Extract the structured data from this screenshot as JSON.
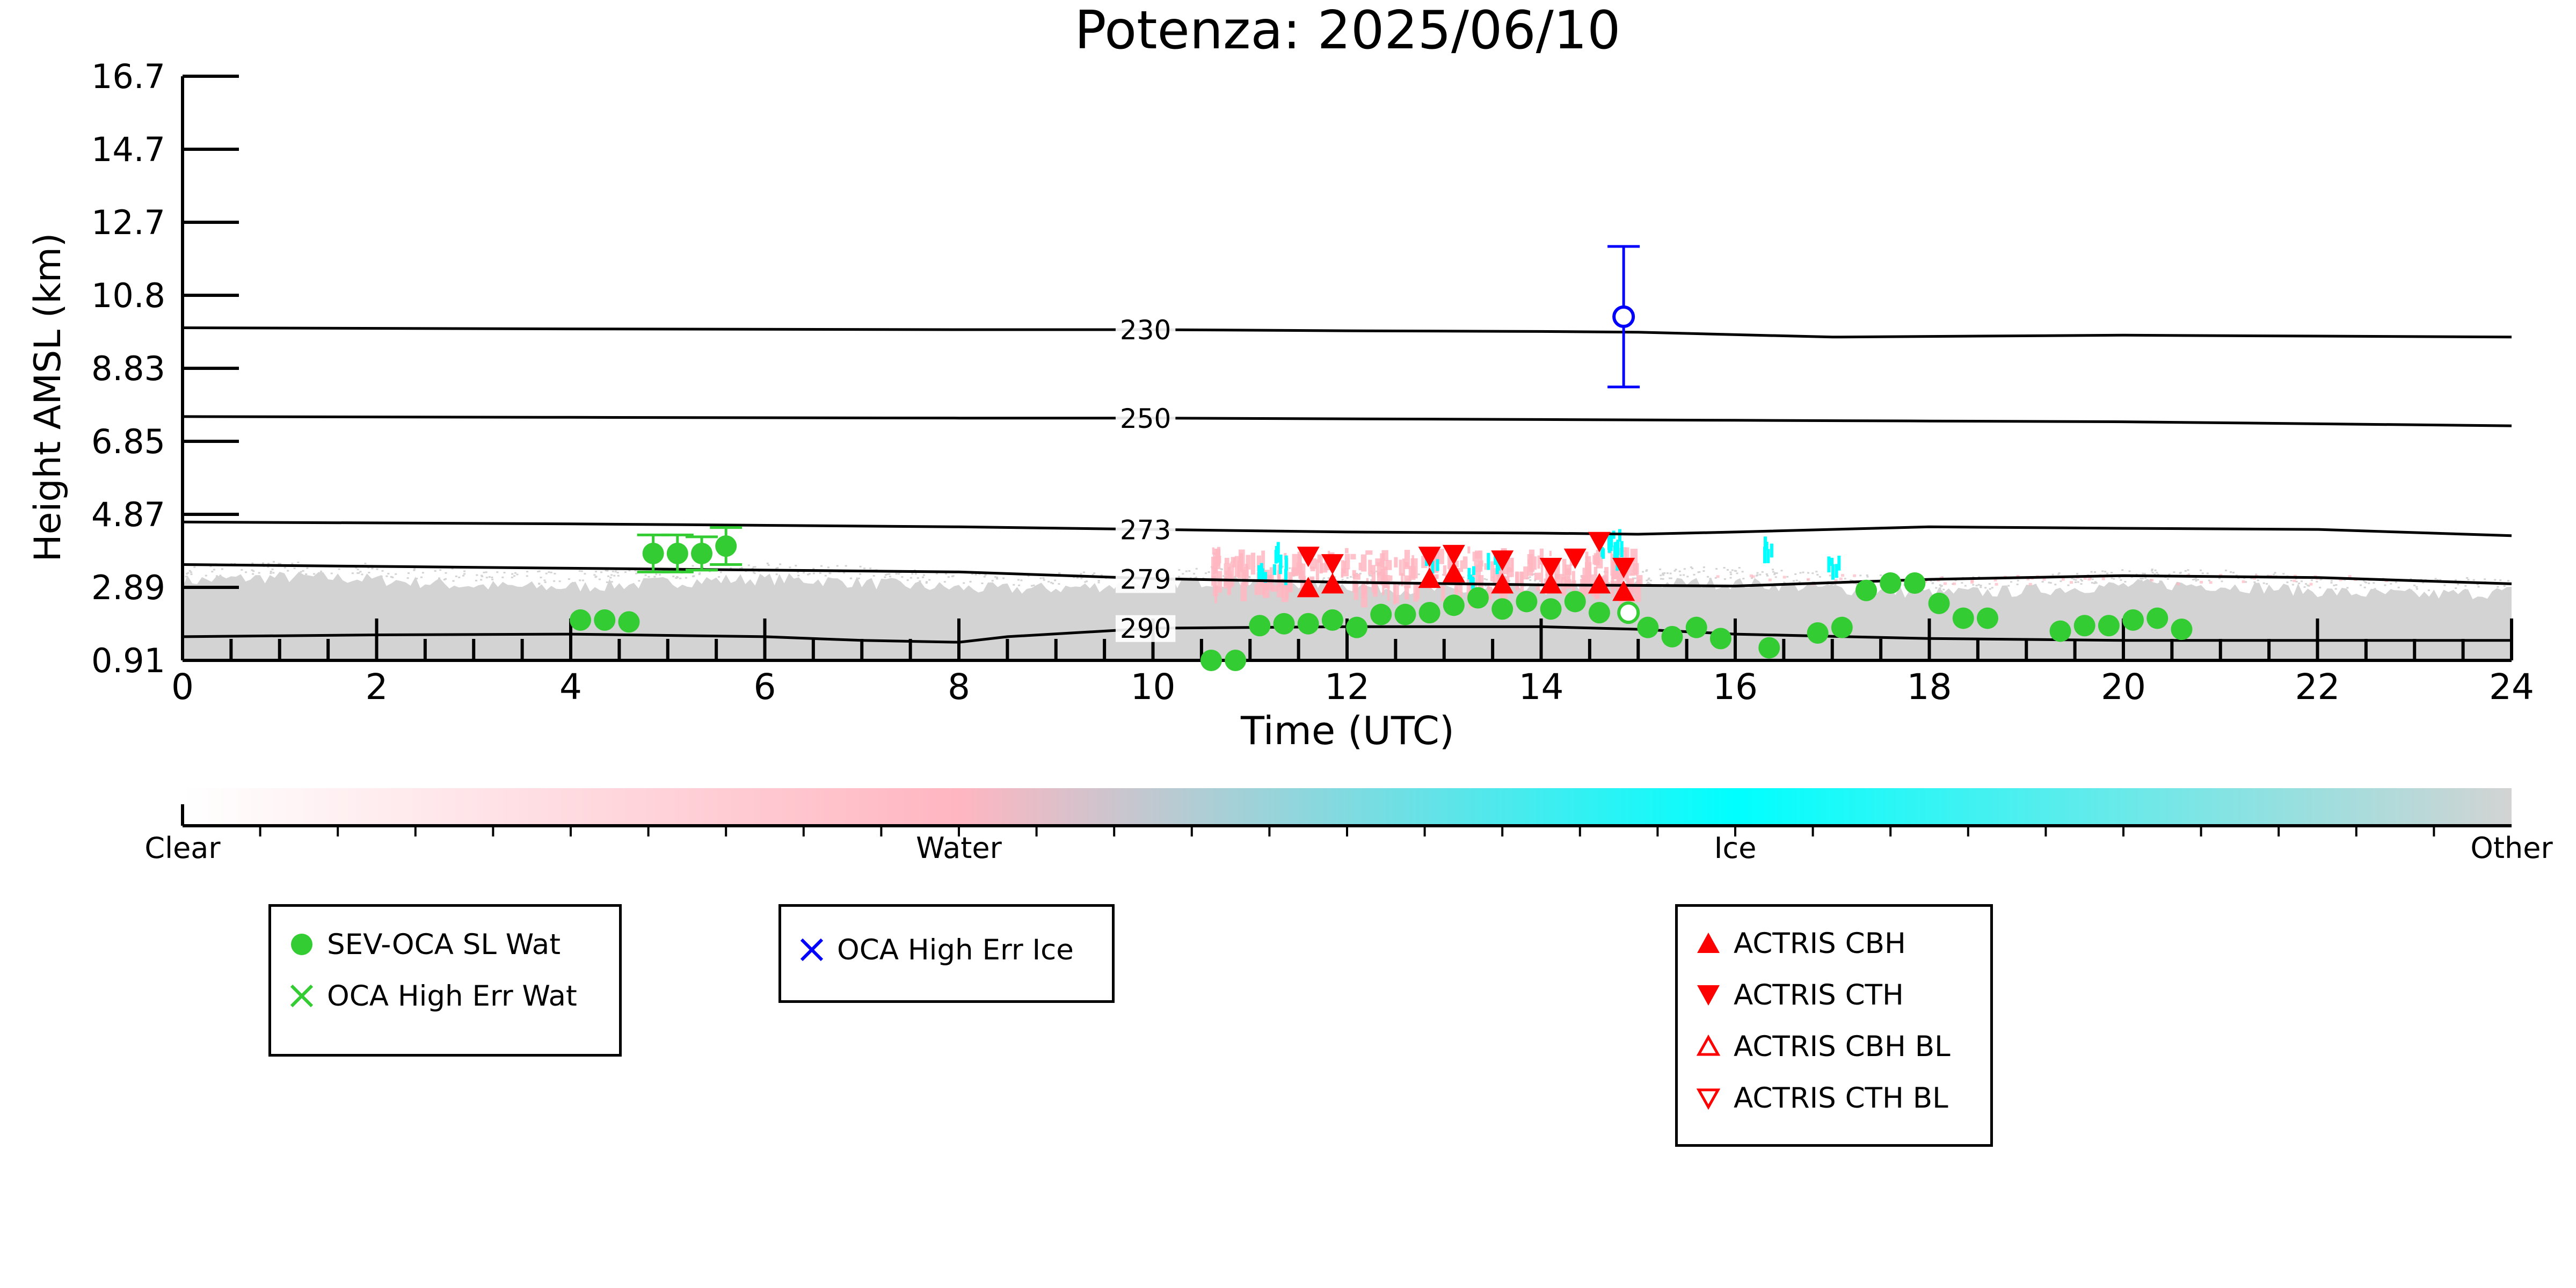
{
  "chart_data": {
    "type": "scatter",
    "title": "Potenza: 2025/06/10",
    "xlabel": "Time (UTC)",
    "ylabel": "Height AMSL (km)",
    "xlim": [
      0,
      24
    ],
    "x_ticks": [
      0,
      2,
      4,
      6,
      8,
      10,
      12,
      14,
      16,
      18,
      20,
      22,
      24
    ],
    "x_minor_step": 0.5,
    "y_ticks": [
      "0.91",
      "2.89",
      "4.87",
      "6.85",
      "8.83",
      "10.8",
      "12.7",
      "14.7",
      "16.7"
    ],
    "ylim": [
      0.91,
      16.7
    ],
    "background_colors": {
      "target_classification": "#d3d3d3",
      "water": "#ffb6c1",
      "ice": "#00ffff"
    },
    "temperature_contours": [
      {
        "label": "230",
        "x": [
          0,
          4,
          8,
          10,
          12,
          14,
          15,
          17,
          20,
          24
        ],
        "y": [
          9.9,
          9.87,
          9.85,
          9.85,
          9.82,
          9.8,
          9.78,
          9.65,
          9.7,
          9.65
        ]
      },
      {
        "label": "250",
        "x": [
          0,
          4,
          8,
          10,
          12,
          14,
          16,
          18,
          20,
          24
        ],
        "y": [
          7.5,
          7.48,
          7.46,
          7.46,
          7.44,
          7.42,
          7.4,
          7.38,
          7.36,
          7.25
        ]
      },
      {
        "label": "273",
        "x": [
          0,
          4,
          8,
          10,
          12,
          14,
          15,
          16,
          18,
          20,
          22,
          24
        ],
        "y": [
          4.65,
          4.6,
          4.52,
          4.45,
          4.38,
          4.35,
          4.32,
          4.38,
          4.52,
          4.48,
          4.45,
          4.28
        ]
      },
      {
        "label": "279",
        "x": [
          0,
          4,
          8,
          10,
          12,
          14,
          16,
          18,
          20,
          22,
          24
        ],
        "y": [
          3.5,
          3.4,
          3.3,
          3.12,
          3.02,
          2.95,
          2.92,
          3.1,
          3.2,
          3.15,
          2.98
        ]
      },
      {
        "label": "290",
        "x": [
          0,
          2,
          4,
          6,
          7,
          8,
          8.5,
          10,
          12,
          14,
          15,
          16,
          18,
          20,
          22,
          24
        ],
        "y": [
          1.55,
          1.6,
          1.62,
          1.55,
          1.45,
          1.4,
          1.55,
          1.78,
          1.82,
          1.82,
          1.75,
          1.62,
          1.5,
          1.45,
          1.45,
          1.45
        ]
      }
    ],
    "series": [
      {
        "name": "SEV-OCA SL Wat",
        "color": "#33cc33",
        "marker": "filled-circle",
        "points": [
          {
            "x": 4.1,
            "y": 2.0
          },
          {
            "x": 4.35,
            "y": 2.0
          },
          {
            "x": 4.6,
            "y": 1.95
          },
          {
            "x": 4.85,
            "y": 3.8,
            "err": 0.5
          },
          {
            "x": 5.1,
            "y": 3.8,
            "err": 0.5
          },
          {
            "x": 5.35,
            "y": 3.8,
            "err": 0.45
          },
          {
            "x": 5.6,
            "y": 4.0,
            "err": 0.5
          },
          {
            "x": 10.6,
            "y": 0.91
          },
          {
            "x": 10.85,
            "y": 0.91
          },
          {
            "x": 11.1,
            "y": 1.85
          },
          {
            "x": 11.35,
            "y": 1.9
          },
          {
            "x": 11.6,
            "y": 1.9
          },
          {
            "x": 11.85,
            "y": 2.0
          },
          {
            "x": 12.1,
            "y": 1.8
          },
          {
            "x": 12.35,
            "y": 2.15
          },
          {
            "x": 12.6,
            "y": 2.15
          },
          {
            "x": 12.85,
            "y": 2.2
          },
          {
            "x": 13.1,
            "y": 2.4
          },
          {
            "x": 13.35,
            "y": 2.6
          },
          {
            "x": 13.6,
            "y": 2.3
          },
          {
            "x": 13.85,
            "y": 2.5
          },
          {
            "x": 14.1,
            "y": 2.3
          },
          {
            "x": 14.35,
            "y": 2.5
          },
          {
            "x": 14.6,
            "y": 2.2
          },
          {
            "x": 15.1,
            "y": 1.8
          },
          {
            "x": 15.35,
            "y": 1.55
          },
          {
            "x": 15.6,
            "y": 1.8
          },
          {
            "x": 15.85,
            "y": 1.5
          },
          {
            "x": 16.35,
            "y": 1.25
          },
          {
            "x": 16.85,
            "y": 1.65
          },
          {
            "x": 17.1,
            "y": 1.8
          },
          {
            "x": 17.35,
            "y": 2.8
          },
          {
            "x": 17.6,
            "y": 3.0
          },
          {
            "x": 17.85,
            "y": 3.0
          },
          {
            "x": 18.1,
            "y": 2.45
          },
          {
            "x": 18.35,
            "y": 2.05
          },
          {
            "x": 18.6,
            "y": 2.05
          },
          {
            "x": 19.35,
            "y": 1.7
          },
          {
            "x": 19.6,
            "y": 1.85
          },
          {
            "x": 19.85,
            "y": 1.85
          },
          {
            "x": 20.1,
            "y": 2.0
          },
          {
            "x": 20.35,
            "y": 2.05
          },
          {
            "x": 20.6,
            "y": 1.75
          }
        ]
      },
      {
        "name": "OCA High Err Wat",
        "color": "#33cc33",
        "marker": "x",
        "points": [
          {
            "x": 14.9,
            "y": 2.2
          }
        ]
      },
      {
        "name": "OCA High Err Ice",
        "color": "#0000ff",
        "marker": "x",
        "points": [
          {
            "x": 14.85,
            "y": 10.2,
            "err": 1.9
          }
        ]
      },
      {
        "name": "ACTRIS CBH",
        "color": "#ff0000",
        "marker": "triangle-up",
        "points": [
          {
            "x": 11.6,
            "y": 2.85
          },
          {
            "x": 11.85,
            "y": 2.95
          },
          {
            "x": 12.85,
            "y": 3.1
          },
          {
            "x": 13.1,
            "y": 3.25
          },
          {
            "x": 13.6,
            "y": 2.95
          },
          {
            "x": 14.1,
            "y": 2.95
          },
          {
            "x": 14.6,
            "y": 2.95
          },
          {
            "x": 14.85,
            "y": 2.75
          }
        ]
      },
      {
        "name": "ACTRIS CTH",
        "color": "#ff0000",
        "marker": "triangle-down",
        "points": [
          {
            "x": 11.6,
            "y": 3.75
          },
          {
            "x": 11.85,
            "y": 3.55
          },
          {
            "x": 12.85,
            "y": 3.75
          },
          {
            "x": 13.1,
            "y": 3.8
          },
          {
            "x": 13.6,
            "y": 3.65
          },
          {
            "x": 14.1,
            "y": 3.45
          },
          {
            "x": 14.35,
            "y": 3.7
          },
          {
            "x": 14.6,
            "y": 4.15
          },
          {
            "x": 14.85,
            "y": 3.45
          }
        ]
      },
      {
        "name": "ACTRIS CBH BL",
        "color": "#ff0000",
        "marker": "open-triangle-up",
        "points": []
      },
      {
        "name": "ACTRIS CTH BL",
        "color": "#ff0000",
        "marker": "open-triangle-down",
        "points": []
      }
    ],
    "colorbar": {
      "labels": [
        "Clear",
        "Water",
        "Ice",
        "Other"
      ],
      "colors": [
        "#ffffff",
        "#ffb6c1",
        "#00ffff",
        "#d3d3d3"
      ]
    },
    "legend_groups": [
      {
        "entries": [
          {
            "label": "SEV-OCA SL Wat",
            "marker": "filled-circle",
            "color": "#33cc33"
          },
          {
            "label": "OCA High Err Wat",
            "marker": "x",
            "color": "#33cc33"
          }
        ]
      },
      {
        "entries": [
          {
            "label": "OCA High Err Ice",
            "marker": "x",
            "color": "#0000ff"
          }
        ]
      },
      {
        "entries": [
          {
            "label": "ACTRIS CBH",
            "marker": "triangle-up",
            "color": "#ff0000"
          },
          {
            "label": "ACTRIS CTH",
            "marker": "triangle-down",
            "color": "#ff0000"
          },
          {
            "label": "ACTRIS CBH BL",
            "marker": "open-triangle-up",
            "color": "#ff0000"
          },
          {
            "label": "ACTRIS CTH BL",
            "marker": "open-triangle-down",
            "color": "#ff0000"
          }
        ]
      }
    ]
  }
}
